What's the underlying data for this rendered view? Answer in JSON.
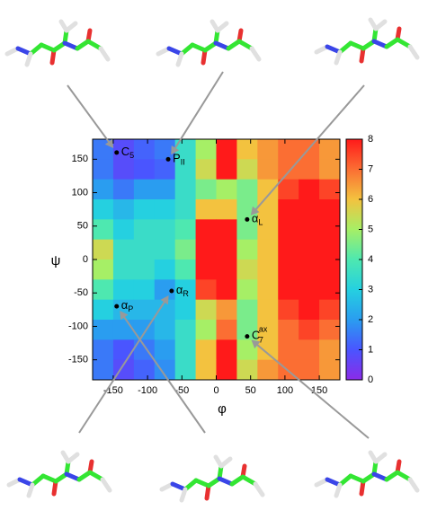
{
  "chart_data": {
    "type": "heatmap",
    "xlabel": "φ",
    "ylabel": "ψ",
    "x": [
      -165,
      -135,
      -105,
      -75,
      -45,
      -15,
      15,
      45,
      75,
      105,
      135,
      165
    ],
    "y": [
      165,
      135,
      105,
      75,
      45,
      15,
      -15,
      -45,
      -75,
      -105,
      -135,
      -165
    ],
    "z": [
      [
        1.5,
        0.8,
        1.2,
        1.5,
        3.5,
        5,
        8,
        6,
        6.5,
        7,
        7,
        6.5
      ],
      [
        1.5,
        0.8,
        1.0,
        1.2,
        3.5,
        5.5,
        8,
        5.5,
        6.5,
        7,
        7,
        6.5
      ],
      [
        2,
        1.5,
        2,
        2,
        3.5,
        4.5,
        5,
        4.5,
        6,
        7.5,
        8,
        7.5
      ],
      [
        3,
        2.5,
        3,
        3,
        3.5,
        6,
        6,
        4.5,
        6,
        8,
        8,
        8
      ],
      [
        4,
        3,
        3.5,
        3.5,
        4,
        8,
        8,
        4.5,
        6,
        8,
        8,
        8
      ],
      [
        5.5,
        3.5,
        3.5,
        3.5,
        4.5,
        8,
        8,
        5,
        6,
        8,
        8,
        8
      ],
      [
        5,
        3.5,
        3.5,
        3,
        4,
        8,
        8,
        5.5,
        6,
        8,
        8,
        8
      ],
      [
        4,
        3,
        3,
        2,
        3,
        7.5,
        8,
        5,
        6,
        8,
        8,
        8
      ],
      [
        3,
        2.5,
        2.5,
        2.5,
        3,
        5.5,
        6.5,
        4.5,
        6,
        7.5,
        8,
        7.5
      ],
      [
        2,
        2,
        2,
        2.5,
        3.5,
        5,
        7,
        4.5,
        6,
        7,
        7.5,
        7
      ],
      [
        1.5,
        1,
        1.5,
        2,
        3.5,
        6,
        8,
        5,
        6,
        7,
        7,
        6.5
      ],
      [
        1.5,
        0.8,
        1.2,
        1.8,
        3.5,
        6,
        8,
        5.5,
        6.5,
        7,
        7,
        6.5
      ]
    ],
    "xlim": [
      -180,
      180
    ],
    "ylim": [
      -180,
      180
    ],
    "zlim": [
      0,
      8
    ],
    "xticks": [
      -150,
      -100,
      -50,
      0,
      50,
      100,
      150
    ],
    "yticks": [
      -150,
      -100,
      -50,
      0,
      50,
      100,
      150
    ],
    "zticks": [
      0,
      1,
      2,
      3,
      4,
      5,
      6,
      7,
      8
    ],
    "colorscale": [
      "#8b2be8",
      "#4a55ff",
      "#2a9df0",
      "#25d0e0",
      "#4ee8b0",
      "#a6ef66",
      "#f3c23f",
      "#fb6e33",
      "#ff1a1a"
    ],
    "annotations": [
      {
        "label": "C",
        "sub": "5",
        "x": -145,
        "y": 160
      },
      {
        "label": "P",
        "sub": "II",
        "x": -70,
        "y": 150
      },
      {
        "label": "α",
        "sub": "L",
        "x": 45,
        "y": 60
      },
      {
        "label": "α",
        "sub": "R",
        "x": -65,
        "y": -47
      },
      {
        "label": "α",
        "sub": "P",
        "x": -145,
        "y": -70
      },
      {
        "label": "C",
        "sub": "7",
        "sup": "ax",
        "x": 45,
        "y": -115
      }
    ]
  }
}
